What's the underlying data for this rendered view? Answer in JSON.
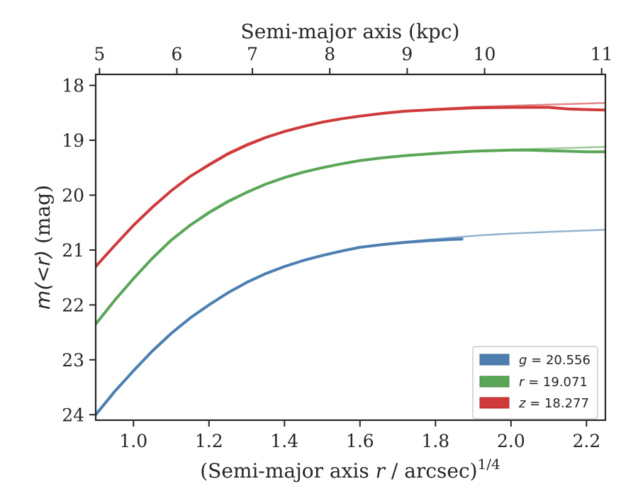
{
  "chart_data": {
    "type": "line",
    "xlabel": "(Semi-major axis r / arcsec)",
    "xlabel_prefix": "(Semi-major axis ",
    "xlabel_var": "r",
    "xlabel_suffix": " / arcsec)",
    "xlabel_superscript": "1/4",
    "ylabel": "m(<r) (mag)",
    "ylabel_math": "m(<r)",
    "ylabel_unit": " (mag)",
    "top_xlabel": "Semi-major axis (kpc)",
    "xlim": [
      0.9,
      2.25
    ],
    "ylim": [
      24.1,
      17.8
    ],
    "y_inverted": true,
    "x_ticks": [
      1.0,
      1.2,
      1.4,
      1.6,
      1.8,
      2.0,
      2.2
    ],
    "x_tick_labels": [
      "1.0",
      "1.2",
      "1.4",
      "1.6",
      "1.8",
      "2.0",
      "2.2"
    ],
    "y_ticks": [
      18,
      19,
      20,
      21,
      22,
      23,
      24
    ],
    "y_tick_labels": [
      "18",
      "19",
      "20",
      "21",
      "22",
      "23",
      "24"
    ],
    "top_ticks_kpc": [
      5,
      6,
      7,
      8,
      9,
      10,
      11
    ],
    "top_tick_labels": [
      "5",
      "6",
      "7",
      "8",
      "9",
      "10",
      "11"
    ],
    "top_axis_x_positions": [
      0.91,
      1.115,
      1.315,
      1.52,
      1.725,
      1.93,
      2.24
    ],
    "legend_position": "lower right",
    "grid": false,
    "series": [
      {
        "band": "g",
        "legend_math": "g",
        "legend_value": " = 20.556",
        "color": "#4c7fb0",
        "measured": {
          "x": [
            0.9,
            0.95,
            1.0,
            1.05,
            1.1,
            1.15,
            1.2,
            1.25,
            1.3,
            1.35,
            1.4,
            1.45,
            1.5,
            1.55,
            1.6,
            1.66,
            1.72,
            1.78,
            1.83,
            1.87
          ],
          "y": [
            24.0,
            23.58,
            23.2,
            22.84,
            22.52,
            22.24,
            22.0,
            21.78,
            21.59,
            21.43,
            21.3,
            21.19,
            21.1,
            21.02,
            20.95,
            20.9,
            20.86,
            20.83,
            20.81,
            20.8
          ]
        },
        "model": {
          "x": [
            0.9,
            0.95,
            1.0,
            1.05,
            1.1,
            1.15,
            1.2,
            1.25,
            1.3,
            1.35,
            1.4,
            1.45,
            1.5,
            1.55,
            1.6,
            1.66,
            1.72,
            1.78,
            1.85,
            1.92,
            2.0,
            2.1,
            2.25
          ],
          "y": [
            24.0,
            23.58,
            23.2,
            22.84,
            22.52,
            22.24,
            22.0,
            21.78,
            21.59,
            21.43,
            21.3,
            21.19,
            21.1,
            21.02,
            20.95,
            20.9,
            20.85,
            20.81,
            20.77,
            20.73,
            20.7,
            20.67,
            20.63
          ]
        }
      },
      {
        "band": "r",
        "legend_math": "r",
        "legend_value": " = 19.071",
        "color": "#5aa657",
        "measured": {
          "x": [
            0.9,
            0.95,
            1.0,
            1.05,
            1.1,
            1.15,
            1.2,
            1.25,
            1.3,
            1.35,
            1.4,
            1.45,
            1.5,
            1.55,
            1.6,
            1.66,
            1.72,
            1.8,
            1.9,
            2.0,
            2.05,
            2.1,
            2.15,
            2.2,
            2.25
          ],
          "y": [
            22.35,
            21.92,
            21.52,
            21.15,
            20.82,
            20.55,
            20.32,
            20.12,
            19.95,
            19.8,
            19.68,
            19.58,
            19.5,
            19.43,
            19.37,
            19.32,
            19.28,
            19.24,
            19.2,
            19.18,
            19.18,
            19.19,
            19.2,
            19.21,
            19.21
          ]
        },
        "model": {
          "x": [
            0.9,
            0.95,
            1.0,
            1.05,
            1.1,
            1.15,
            1.2,
            1.25,
            1.3,
            1.35,
            1.4,
            1.45,
            1.5,
            1.55,
            1.6,
            1.66,
            1.72,
            1.8,
            1.9,
            2.0,
            2.1,
            2.25
          ],
          "y": [
            22.35,
            21.92,
            21.52,
            21.15,
            20.82,
            20.54,
            20.3,
            20.1,
            19.94,
            19.8,
            19.68,
            19.58,
            19.5,
            19.43,
            19.37,
            19.32,
            19.28,
            19.24,
            19.2,
            19.17,
            19.15,
            19.12
          ]
        }
      },
      {
        "band": "z",
        "legend_math": "z",
        "legend_value": " = 18.277",
        "color": "#d03a3b",
        "measured": {
          "x": [
            0.9,
            0.95,
            1.0,
            1.05,
            1.1,
            1.15,
            1.2,
            1.25,
            1.3,
            1.35,
            1.4,
            1.45,
            1.5,
            1.55,
            1.6,
            1.66,
            1.72,
            1.8,
            1.9,
            2.0,
            2.1,
            2.15,
            2.2,
            2.25
          ],
          "y": [
            21.3,
            20.92,
            20.55,
            20.22,
            19.92,
            19.66,
            19.45,
            19.25,
            19.09,
            18.95,
            18.84,
            18.75,
            18.67,
            18.61,
            18.56,
            18.51,
            18.47,
            18.44,
            18.41,
            18.4,
            18.4,
            18.43,
            18.44,
            18.45
          ]
        },
        "model": {
          "x": [
            0.9,
            0.95,
            1.0,
            1.05,
            1.1,
            1.15,
            1.2,
            1.25,
            1.3,
            1.35,
            1.4,
            1.45,
            1.5,
            1.55,
            1.6,
            1.66,
            1.72,
            1.8,
            1.9,
            2.0,
            2.1,
            2.25
          ],
          "y": [
            21.3,
            20.92,
            20.55,
            20.22,
            19.92,
            19.66,
            19.43,
            19.23,
            19.07,
            18.94,
            18.83,
            18.74,
            18.67,
            18.61,
            18.56,
            18.51,
            18.47,
            18.43,
            18.39,
            18.37,
            18.35,
            18.32
          ]
        }
      }
    ]
  }
}
